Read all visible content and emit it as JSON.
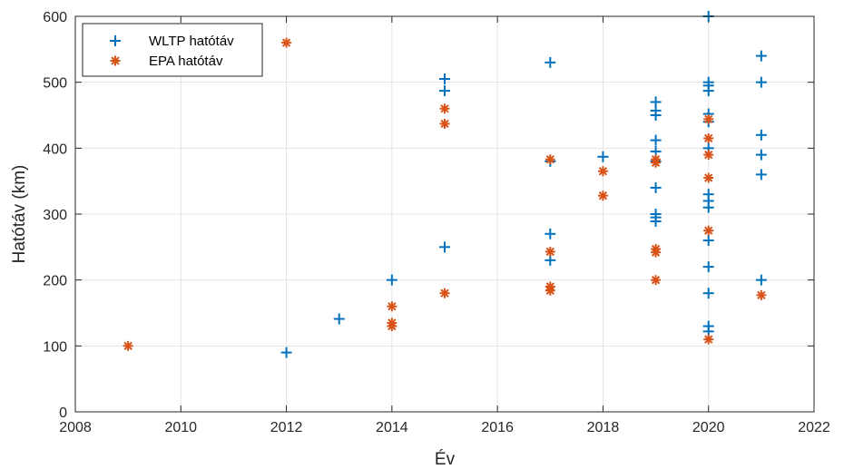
{
  "chart_data": {
    "type": "scatter",
    "xlabel": "Év",
    "ylabel": "Hatótáv (km)",
    "xlim": [
      2008,
      2022
    ],
    "ylim": [
      0,
      600
    ],
    "xticks": [
      "2008",
      "2010",
      "2012",
      "2014",
      "2016",
      "2018",
      "2020",
      "2022"
    ],
    "yticks": [
      "0",
      "100",
      "200",
      "300",
      "400",
      "500",
      "600"
    ],
    "grid": true,
    "legend_position": "top-left",
    "series": [
      {
        "name": "WLTP hatótáv",
        "marker": "plus",
        "color": "#0072BD",
        "points": [
          [
            2012,
            90
          ],
          [
            2013,
            141
          ],
          [
            2014,
            200
          ],
          [
            2015,
            250
          ],
          [
            2015,
            487
          ],
          [
            2015,
            505
          ],
          [
            2017,
            230
          ],
          [
            2017,
            270
          ],
          [
            2017,
            380
          ],
          [
            2017,
            530
          ],
          [
            2018,
            387
          ],
          [
            2019,
            289
          ],
          [
            2019,
            295
          ],
          [
            2019,
            300
          ],
          [
            2019,
            340
          ],
          [
            2019,
            380
          ],
          [
            2019,
            395
          ],
          [
            2019,
            412
          ],
          [
            2019,
            450
          ],
          [
            2019,
            457
          ],
          [
            2019,
            470
          ],
          [
            2020,
            122
          ],
          [
            2020,
            130
          ],
          [
            2020,
            180
          ],
          [
            2020,
            220
          ],
          [
            2020,
            260
          ],
          [
            2020,
            310
          ],
          [
            2020,
            320
          ],
          [
            2020,
            330
          ],
          [
            2020,
            400
          ],
          [
            2020,
            440
          ],
          [
            2020,
            452
          ],
          [
            2020,
            487
          ],
          [
            2020,
            495
          ],
          [
            2020,
            500
          ],
          [
            2020,
            600
          ],
          [
            2021,
            200
          ],
          [
            2021,
            360
          ],
          [
            2021,
            390
          ],
          [
            2021,
            420
          ],
          [
            2021,
            500
          ],
          [
            2021,
            540
          ]
        ]
      },
      {
        "name": "EPA hatótáv",
        "marker": "asterisk",
        "color": "#D95319",
        "points": [
          [
            2009,
            100
          ],
          [
            2012,
            560
          ],
          [
            2014,
            130
          ],
          [
            2014,
            135
          ],
          [
            2014,
            160
          ],
          [
            2015,
            180
          ],
          [
            2015,
            437
          ],
          [
            2015,
            460
          ],
          [
            2017,
            184
          ],
          [
            2017,
            190
          ],
          [
            2017,
            243
          ],
          [
            2017,
            383
          ],
          [
            2018,
            328
          ],
          [
            2018,
            365
          ],
          [
            2019,
            200
          ],
          [
            2019,
            242
          ],
          [
            2019,
            247
          ],
          [
            2019,
            378
          ],
          [
            2019,
            383
          ],
          [
            2020,
            110
          ],
          [
            2020,
            275
          ],
          [
            2020,
            355
          ],
          [
            2020,
            390
          ],
          [
            2020,
            415
          ],
          [
            2020,
            444
          ],
          [
            2021,
            177
          ]
        ]
      }
    ]
  }
}
